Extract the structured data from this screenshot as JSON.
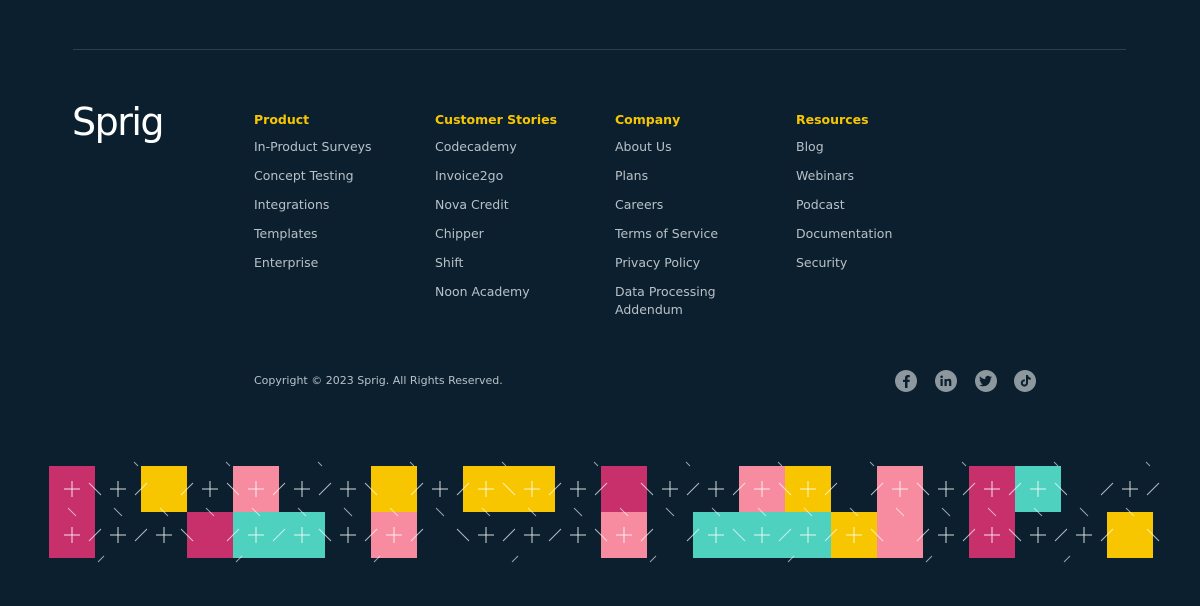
{
  "footer": {
    "logo": "Sprig",
    "columns": [
      {
        "heading": "Product",
        "links": [
          "In-Product Surveys",
          "Concept Testing",
          "Integrations",
          "Templates",
          "Enterprise"
        ]
      },
      {
        "heading": "Customer Stories",
        "links": [
          "Codecademy",
          "Invoice2go",
          "Nova Credit",
          "Chipper",
          "Shift",
          "Noon Academy"
        ]
      },
      {
        "heading": "Company",
        "links": [
          "About Us",
          "Plans",
          "Careers",
          "Terms of Service",
          "Privacy Policy",
          "Data Processing Addendum"
        ]
      },
      {
        "heading": "Resources",
        "links": [
          "Blog",
          "Webinars",
          "Podcast",
          "Documentation",
          "Security"
        ]
      }
    ],
    "copyright": "Copyright © 2023 Sprig. All Rights Reserved."
  }
}
